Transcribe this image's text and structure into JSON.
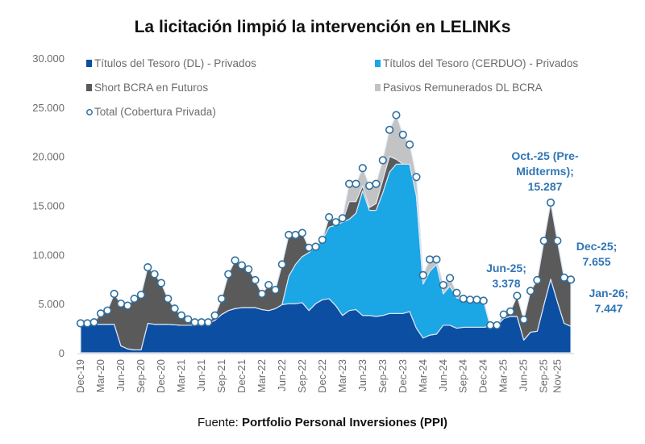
{
  "title": "La licitación limpió la intervención en LELINKs",
  "footer": {
    "prefix": "Fuente: ",
    "source": "Portfolio Personal Inversiones (PPI)"
  },
  "colors": {
    "dl": "#0b4ea2",
    "cerduo": "#1ba6e6",
    "short": "#5a5a5a",
    "pasivos": "#c3c3c3",
    "total": "#2f6f9f",
    "annotation": "#2f75b5"
  },
  "chart_data": {
    "type": "area",
    "title": "La licitación limpió la intervención en LELINKs",
    "xlabel": "",
    "ylabel": "",
    "ylim": [
      0,
      30000
    ],
    "yticks": [
      "0",
      "5.000",
      "10.000",
      "15.000",
      "20.000",
      "25.000",
      "30.000"
    ],
    "ytick_values": [
      0,
      5000,
      10000,
      15000,
      20000,
      25000,
      30000
    ],
    "grid": false,
    "legend_placement": "top",
    "months": [
      "Dec-19",
      "Jan-20",
      "Feb-20",
      "Mar-20",
      "Apr-20",
      "May-20",
      "Jun-20",
      "Jul-20",
      "Aug-20",
      "Sep-20",
      "Oct-20",
      "Nov-20",
      "Dec-20",
      "Jan-21",
      "Feb-21",
      "Mar-21",
      "Apr-21",
      "May-21",
      "Jun-21",
      "Jul-21",
      "Aug-21",
      "Sep-21",
      "Oct-21",
      "Nov-21",
      "Dec-21",
      "Jan-22",
      "Feb-22",
      "Mar-22",
      "Apr-22",
      "May-22",
      "Jun-22",
      "Jul-22",
      "Aug-22",
      "Sep-22",
      "Oct-22",
      "Nov-22",
      "Dec-22",
      "Jan-23",
      "Feb-23",
      "Mar-23",
      "Apr-23",
      "May-23",
      "Jun-23",
      "Jul-23",
      "Aug-23",
      "Sep-23",
      "Oct-23",
      "Nov-23",
      "Dec-23",
      "Jan-24",
      "Feb-24",
      "Mar-24",
      "Apr-24",
      "May-24",
      "Jun-24",
      "Jul-24",
      "Aug-24",
      "Sep-24",
      "Oct-24",
      "Nov-24",
      "Dec-24",
      "Jan-25",
      "Feb-25",
      "Mar-25",
      "Apr-25",
      "May-25",
      "Jun-25",
      "Jul-25",
      "Aug-25",
      "Sep-25",
      "Oct-25",
      "Nov-25",
      "Dec-25",
      "Jan-26"
    ],
    "xtick_labels": [
      "Dec-19",
      "Mar-20",
      "Jun-20",
      "Sep-20",
      "Dec-20",
      "Mar-21",
      "Jun-21",
      "Sep-21",
      "Dec-21",
      "Mar-22",
      "Jun-22",
      "Sep-22",
      "Dec-22",
      "Mar-23",
      "Jun-23",
      "Sep-23",
      "Dec-23",
      "Mar-24",
      "Jun-24",
      "Sep-24",
      "Dec-24",
      "Mar-25",
      "Jun-25",
      "Sep-25",
      "Nov-25"
    ],
    "series": [
      {
        "key": "dl",
        "name": "Títulos del Tesoro (DL) - Privados",
        "values": [
          2900,
          2900,
          2900,
          2900,
          2900,
          2900,
          700,
          400,
          300,
          300,
          3000,
          2900,
          2900,
          2900,
          2850,
          2800,
          2800,
          2800,
          2900,
          3000,
          3300,
          3900,
          4300,
          4500,
          4600,
          4600,
          4600,
          4400,
          4300,
          4500,
          4900,
          5000,
          5000,
          5100,
          4300,
          5000,
          5400,
          5500,
          4800,
          3800,
          4300,
          4400,
          3800,
          3800,
          3700,
          3800,
          4000,
          4000,
          4000,
          4200,
          2500,
          1500,
          1800,
          1900,
          2800,
          2800,
          2500,
          2600,
          2600,
          2600,
          2600,
          2700,
          2800,
          3500,
          3700,
          3700,
          1300,
          2100,
          2200,
          4900,
          7500,
          5200,
          3000,
          2700
        ]
      },
      {
        "key": "cerduo",
        "name": "Títulos del Tesoro (CERDUO) - Privados",
        "values": [
          0,
          0,
          0,
          0,
          0,
          0,
          0,
          0,
          0,
          0,
          0,
          0,
          0,
          0,
          0,
          0,
          0,
          0,
          0,
          0,
          0,
          0,
          0,
          0,
          0,
          0,
          0,
          0,
          0,
          0,
          0,
          2800,
          4000,
          4700,
          5900,
          5800,
          6100,
          7300,
          8200,
          9500,
          9300,
          9800,
          12700,
          10700,
          10800,
          12500,
          14400,
          15200,
          15200,
          15000,
          13500,
          5500,
          6500,
          7100,
          3200,
          4000,
          3100,
          2800,
          2700,
          2700,
          2700,
          0,
          0,
          0,
          0,
          0,
          0,
          0,
          0,
          0,
          0,
          0,
          0,
          0
        ]
      },
      {
        "key": "short",
        "name": "Short BCRA en Futuros",
        "values": [
          100,
          100,
          200,
          1100,
          1400,
          3100,
          4300,
          4400,
          5200,
          5600,
          5700,
          5100,
          4200,
          2600,
          1650,
          1000,
          600,
          300,
          200,
          100,
          500,
          1600,
          3700,
          4900,
          4300,
          3900,
          2800,
          1600,
          2600,
          1900,
          4100,
          4200,
          3000,
          2400,
          500,
          0,
          0,
          1000,
          300,
          100,
          1800,
          1200,
          500,
          300,
          700,
          1300,
          1600,
          500,
          0,
          0,
          0,
          0,
          0,
          0,
          0,
          0,
          0,
          100,
          100,
          100,
          0,
          100,
          0,
          400,
          500,
          2100,
          2078,
          4200,
          5200,
          6500,
          7787,
          6200,
          4655,
          4747
        ]
      },
      {
        "key": "pasivos",
        "name": "Pasivos Remunerados DL BCRA",
        "values": [
          0,
          0,
          0,
          0,
          0,
          0,
          0,
          0,
          0,
          0,
          0,
          0,
          0,
          0,
          0,
          0,
          0,
          0,
          0,
          0,
          0,
          0,
          0,
          0,
          0,
          0,
          0,
          0,
          0,
          0,
          0,
          0,
          0,
          0,
          0,
          0,
          0,
          0,
          0,
          300,
          1800,
          1800,
          1800,
          2200,
          2000,
          2000,
          2700,
          4500,
          3000,
          2000,
          1900,
          900,
          1200,
          500,
          900,
          800,
          500,
          0,
          0,
          0,
          0,
          0,
          0,
          0,
          0,
          0,
          0,
          0,
          0,
          0,
          0,
          0,
          0,
          0
        ]
      }
    ],
    "total": {
      "name": "Total (Cobertura Privada)",
      "values": [
        3000,
        3000,
        3100,
        4000,
        4300,
        6000,
        5000,
        4800,
        5500,
        5900,
        8700,
        8000,
        7100,
        5500,
        4500,
        3800,
        3400,
        3100,
        3100,
        3100,
        3800,
        5500,
        8000,
        9400,
        8900,
        8500,
        7400,
        6000,
        6900,
        6400,
        9000,
        12000,
        12000,
        12200,
        10700,
        10800,
        11500,
        13800,
        13300,
        13700,
        17200,
        17200,
        18800,
        17000,
        17200,
        19600,
        22700,
        24200,
        22200,
        21200,
        17900,
        7900,
        9500,
        9500,
        6900,
        7600,
        6100,
        5500,
        5400,
        5400,
        5300,
        2800,
        2800,
        3900,
        4200,
        5800,
        3378,
        6300,
        7400,
        11400,
        15287,
        11400,
        7655,
        7447
      ]
    },
    "annotations": [
      {
        "month": "Jun-25",
        "lines": [
          "Jun-25;",
          "3.378"
        ]
      },
      {
        "month": "Oct-25",
        "lines": [
          "Oct.-25 (Pre-",
          "Midterms);",
          "15.287"
        ]
      },
      {
        "month": "Dec-25",
        "lines": [
          "Dec-25;",
          "7.655"
        ]
      },
      {
        "month": "Jan-26",
        "lines": [
          "Jan-26;",
          "7.447"
        ]
      }
    ]
  }
}
